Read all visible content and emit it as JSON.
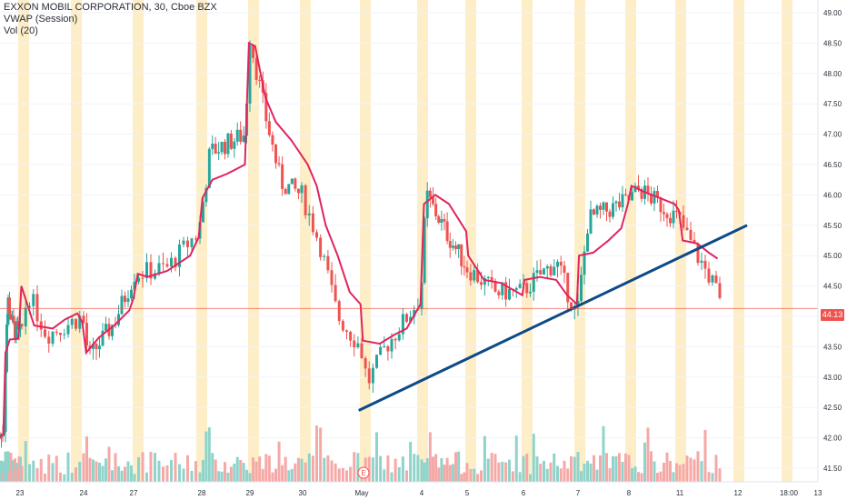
{
  "legend": {
    "symbol": "EXXON MOBIL CORPORATION, 30, Cboe BZX",
    "vwap": "VWAP (Session)",
    "vol": "Vol (20)"
  },
  "colors": {
    "up": "#26a69a",
    "down": "#ef5350",
    "vwap": "#e0245e",
    "trendline": "#0d4a86",
    "session_band": "#fdeec8",
    "grid": "#f0f3fa",
    "axis_text": "#2a2e39"
  },
  "chart_data": {
    "type": "candlestick",
    "y_axis": {
      "range": [
        41.5,
        49.1
      ],
      "ticks": [
        "41.50",
        "42.00",
        "42.50",
        "43.00",
        "43.50",
        "44.00",
        "44.50",
        "45.00",
        "45.50",
        "46.00",
        "46.50",
        "47.00",
        "47.50",
        "48.00",
        "48.50",
        "49.00"
      ]
    },
    "x_axis": {
      "ticks": [
        "23",
        "24",
        "27",
        "28",
        "29",
        "30",
        "May",
        "4",
        "5",
        "6",
        "7",
        "8",
        "11",
        "12",
        "18:00",
        "13"
      ]
    },
    "last_price": "44.13",
    "earnings_marker": "E",
    "vwap_path": [
      [
        0,
        42.02
      ],
      [
        0.15,
        42.05
      ],
      [
        0.17,
        42.3
      ],
      [
        0.25,
        43.4
      ],
      [
        0.45,
        43.62
      ],
      [
        0.85,
        43.63
      ],
      [
        0.98,
        44.5
      ],
      [
        1.2,
        43.85
      ],
      [
        1.5,
        43.8
      ],
      [
        1.7,
        43.95
      ],
      [
        1.9,
        44.05
      ],
      [
        1.98,
        43.9
      ],
      [
        2.05,
        43.4
      ],
      [
        2.3,
        43.65
      ],
      [
        2.6,
        43.85
      ],
      [
        2.9,
        44.1
      ],
      [
        2.98,
        44.3
      ],
      [
        3.05,
        44.7
      ],
      [
        3.2,
        44.65
      ],
      [
        3.5,
        44.75
      ],
      [
        3.85,
        45.0
      ],
      [
        3.98,
        45.3
      ],
      [
        4.05,
        45.95
      ],
      [
        4.25,
        46.25
      ],
      [
        4.55,
        46.35
      ],
      [
        4.9,
        46.5
      ],
      [
        4.98,
        48.5
      ],
      [
        5.1,
        48.45
      ],
      [
        5.3,
        47.6
      ],
      [
        5.5,
        47.2
      ],
      [
        5.8,
        46.9
      ],
      [
        6.1,
        46.5
      ],
      [
        6.25,
        46.15
      ],
      [
        6.4,
        45.5
      ],
      [
        6.6,
        45.0
      ],
      [
        6.8,
        44.4
      ],
      [
        6.98,
        44.2
      ],
      [
        7.02,
        43.6
      ],
      [
        7.3,
        43.55
      ],
      [
        7.55,
        43.7
      ],
      [
        7.75,
        43.8
      ],
      [
        7.98,
        44.2
      ],
      [
        8.05,
        45.85
      ],
      [
        8.3,
        46.0
      ],
      [
        8.6,
        45.85
      ],
      [
        8.98,
        45.4
      ],
      [
        9.02,
        45.0
      ],
      [
        9.3,
        44.6
      ],
      [
        9.6,
        44.55
      ],
      [
        9.98,
        44.35
      ],
      [
        10.02,
        44.6
      ],
      [
        10.3,
        44.65
      ],
      [
        10.6,
        44.6
      ],
      [
        10.8,
        44.35
      ],
      [
        10.98,
        44.2
      ],
      [
        11.02,
        45.0
      ],
      [
        11.3,
        45.05
      ],
      [
        11.6,
        45.25
      ],
      [
        11.85,
        45.45
      ],
      [
        11.98,
        45.85
      ],
      [
        12.05,
        46.15
      ],
      [
        12.3,
        46.05
      ],
      [
        12.6,
        45.95
      ],
      [
        12.9,
        45.85
      ],
      [
        12.98,
        45.75
      ],
      [
        13.05,
        45.25
      ],
      [
        13.3,
        45.2
      ],
      [
        13.5,
        45.05
      ],
      [
        13.65,
        44.95
      ]
    ],
    "trendline": [
      [
        6.95,
        42.45
      ],
      [
        14.18,
        45.5
      ]
    ],
    "price_line": 44.13
  }
}
